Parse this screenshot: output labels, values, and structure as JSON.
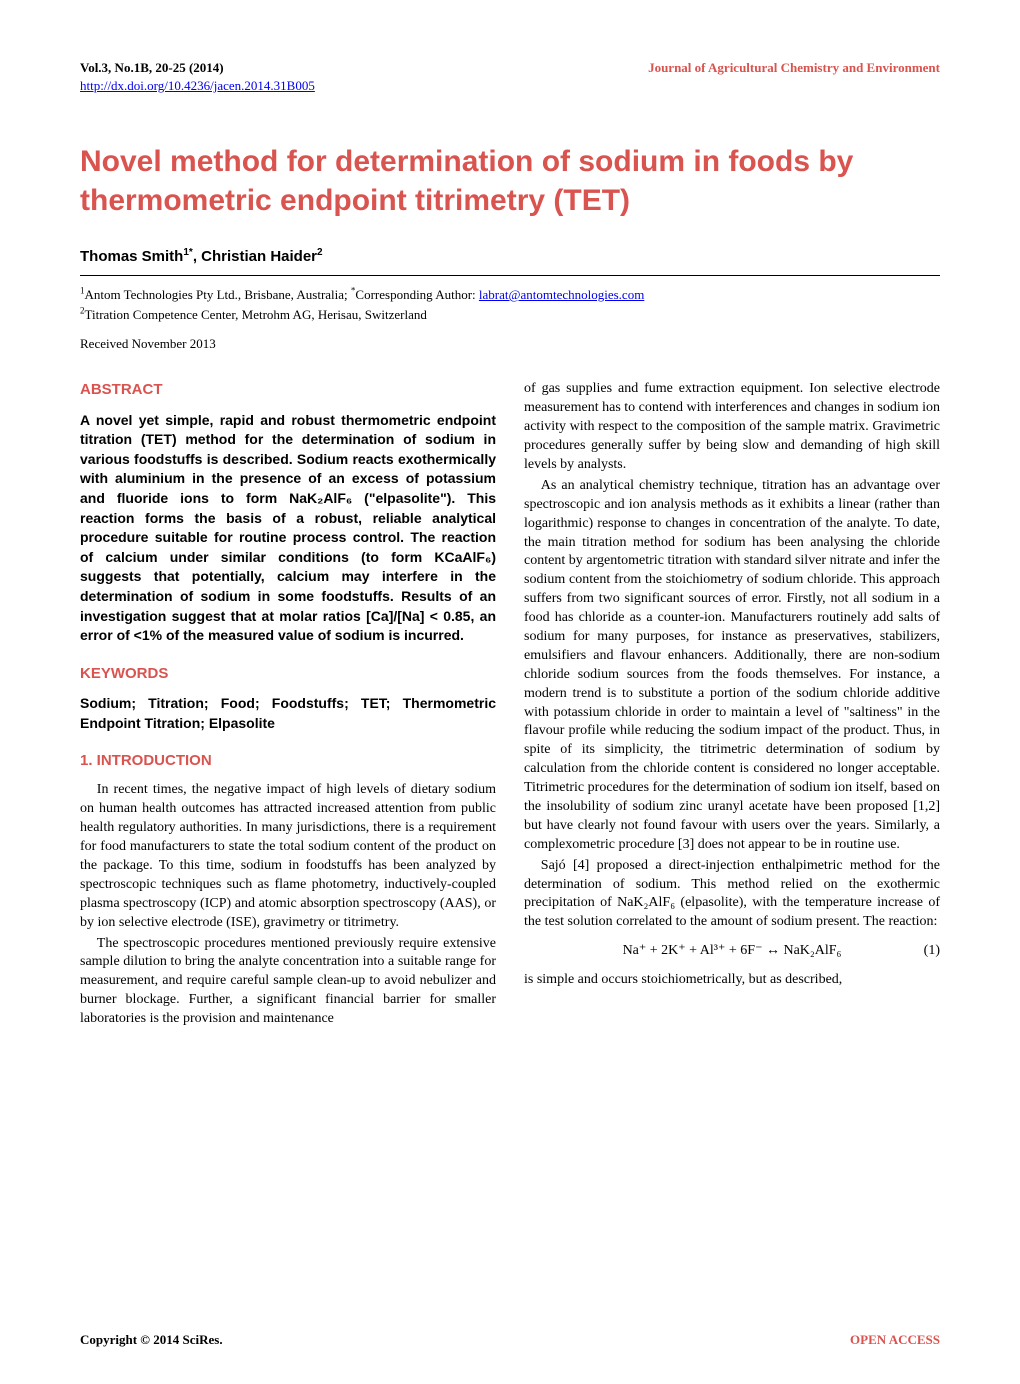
{
  "colors": {
    "accent": "#d9534f",
    "link": "#0000ee",
    "text": "#000000",
    "background": "#ffffff"
  },
  "header": {
    "volume_info": "Vol.3, No.1B, 20-25 (2014)",
    "journal": "Journal of Agricultural Chemistry and Environment",
    "doi_link": "http://dx.doi.org/10.4236/jacen.2014.31B005"
  },
  "title": "Novel method for determination of sodium in foods by thermometric endpoint titrimetry (TET)",
  "authors_line": "Thomas Smith",
  "author1_sup": "1*",
  "author_sep": ", Christian Haider",
  "author2_sup": "2",
  "affiliations": {
    "a1_sup": "1",
    "a1_text": "Antom Technologies Pty Ltd., Brisbane, Australia; ",
    "a1_corr_sup": "*",
    "a1_corr_label": "Corresponding Author: ",
    "a1_email": "labrat@antomtechnologies.com",
    "a2_sup": "2",
    "a2_text": "Titration Competence Center, Metrohm AG, Herisau, Switzerland"
  },
  "received": "Received November 2013",
  "abstract": {
    "heading": "ABSTRACT",
    "text": "A novel yet simple, rapid and robust thermometric endpoint titration (TET) method for the determination of sodium in various foodstuffs is described. Sodium reacts exothermically with aluminium in the presence of an excess of potassium and fluoride ions to form NaK₂AlF₆ (\"elpasolite\"). This reaction forms the basis of a robust, reliable analytical procedure suitable for routine process control. The reaction of calcium under similar conditions (to form KCaAlF₆) suggests that potentially, calcium may interfere in the determination of sodium in some foodstuffs. Results of an investigation suggest that at molar ratios [Ca]/[Na] < 0.85, an error of <1% of the measured value of sodium is incurred."
  },
  "keywords": {
    "heading": "KEYWORDS",
    "text": "Sodium; Titration; Food; Foodstuffs; TET; Thermometric Endpoint Titration; Elpasolite"
  },
  "intro": {
    "heading": "1. INTRODUCTION",
    "p1": "In recent times, the negative impact of high levels of dietary sodium on human health outcomes has attracted increased attention from public health regulatory authorities. In many jurisdictions, there is a requirement for food manufacturers to state the total sodium content of the product on the package. To this time, sodium in foodstuffs has been analyzed by spectroscopic techniques such as flame photometry, inductively-coupled plasma spectroscopy (ICP) and atomic absorption spectroscopy (AAS), or by ion selective electrode (ISE), gravimetry or titrimetry.",
    "p2": "The spectroscopic procedures mentioned previously require extensive sample dilution to bring the analyte concentration into a suitable range for measurement, and require careful sample clean-up to avoid nebulizer and burner blockage. Further, a significant financial barrier for smaller laboratories is the provision and maintenance",
    "p3": "of gas supplies and fume extraction equipment. Ion selective electrode measurement has to contend with interferences and changes in sodium ion activity with respect to the composition of the sample matrix. Gravimetric procedures generally suffer by being slow and demanding of high skill levels by analysts.",
    "p4": "As an analytical chemistry technique, titration has an advantage over spectroscopic and ion analysis methods as it exhibits a linear (rather than logarithmic) response to changes in concentration of the analyte. To date, the main titration method for sodium has been analysing the chloride content by argentometric titration with standard silver nitrate and infer the sodium content from the stoichiometry of sodium chloride. This approach suffers from two significant sources of error. Firstly, not all sodium in a food has chloride as a counter-ion. Manufacturers routinely add salts of sodium for many purposes, for instance as preservatives, stabilizers, emulsifiers and flavour enhancers. Additionally, there are non-sodium chloride sodium sources from the foods themselves. For instance, a modern trend is to substitute a portion of the sodium chloride additive with potassium chloride in order to maintain a level of \"saltiness\" in the flavour profile while reducing the sodium impact of the product. Thus, in spite of its simplicity, the titrimetric determination of sodium by calculation from the chloride content is considered no longer acceptable. Titrimetric procedures for the determination of sodium ion itself, based on the insolubility of sodium zinc uranyl acetate have been proposed [1,2] but have clearly not found favour with users over the years. Similarly, a complexometric procedure [3] does not appear to be in routine use.",
    "p5": "Sajó [4] proposed a direct-injection enthalpimetric method for the determination of sodium. This method relied on the exothermic precipitation of NaK₂AlF₆ (elpasolite), with the temperature increase of the test solution correlated to the amount of sodium present. The reaction:",
    "equation": "Na⁺ + 2K⁺ + Al³⁺ + 6F⁻ ↔ NaK₂AlF₆",
    "eq_num": "(1)",
    "p6": "is simple and occurs stoichiometrically, but as described,"
  },
  "footer": {
    "left": "Copyright © 2014 SciRes.",
    "right": "OPEN ACCESS"
  }
}
